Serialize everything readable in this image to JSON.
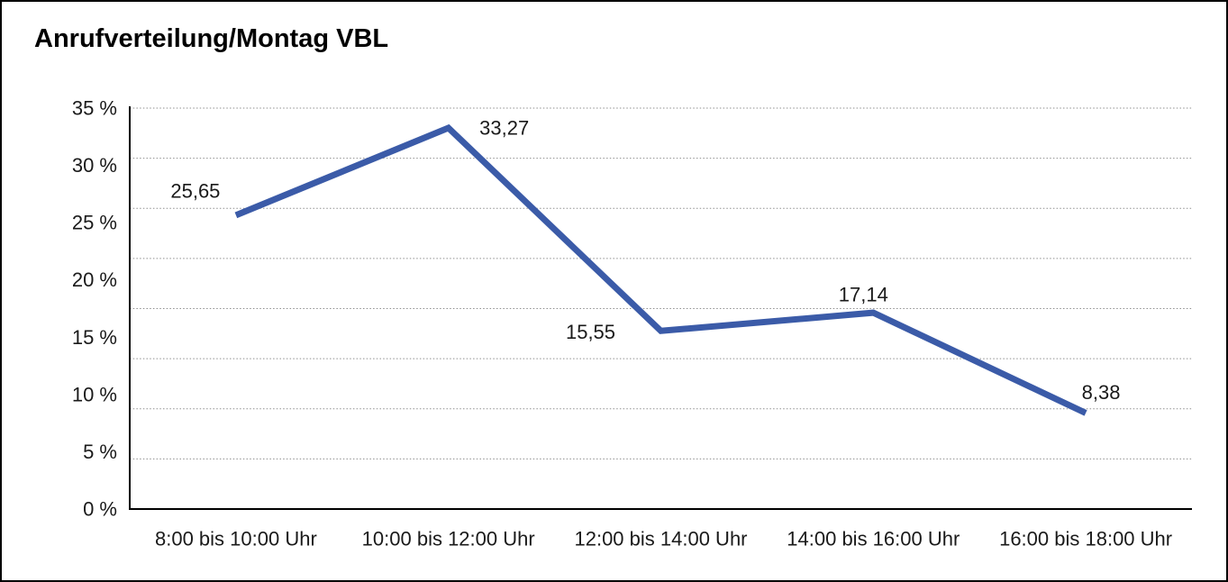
{
  "window": {
    "background_color": "#ffffff",
    "frame_color": "#000000"
  },
  "chart_data": {
    "type": "line",
    "title": "Anrufverteilung/Montag VBL",
    "categories": [
      "8:00 bis 10:00 Uhr",
      "10:00 bis 12:00 Uhr",
      "12:00 bis 14:00 Uhr",
      "14:00 bis 16:00 Uhr",
      "16:00 bis 18:00 Uhr"
    ],
    "values": [
      25.65,
      33.27,
      15.55,
      17.14,
      8.38
    ],
    "point_labels": [
      "25,65",
      "33,27",
      "15,55",
      "17,14",
      "8,38"
    ],
    "yticks": [
      "35 %",
      "30 %",
      "25 %",
      "20 %",
      "15 %",
      "10 %",
      "5 %",
      "0 %"
    ],
    "ylim": [
      0,
      35
    ],
    "xlabel": "",
    "ylabel": "",
    "legend": "none",
    "grid": "horizontal-dotted",
    "line_color": "#3b5ba8",
    "axis_color": "#000000",
    "gridline_color": "#8f8f8f",
    "label_color": "#1a1a1a"
  }
}
